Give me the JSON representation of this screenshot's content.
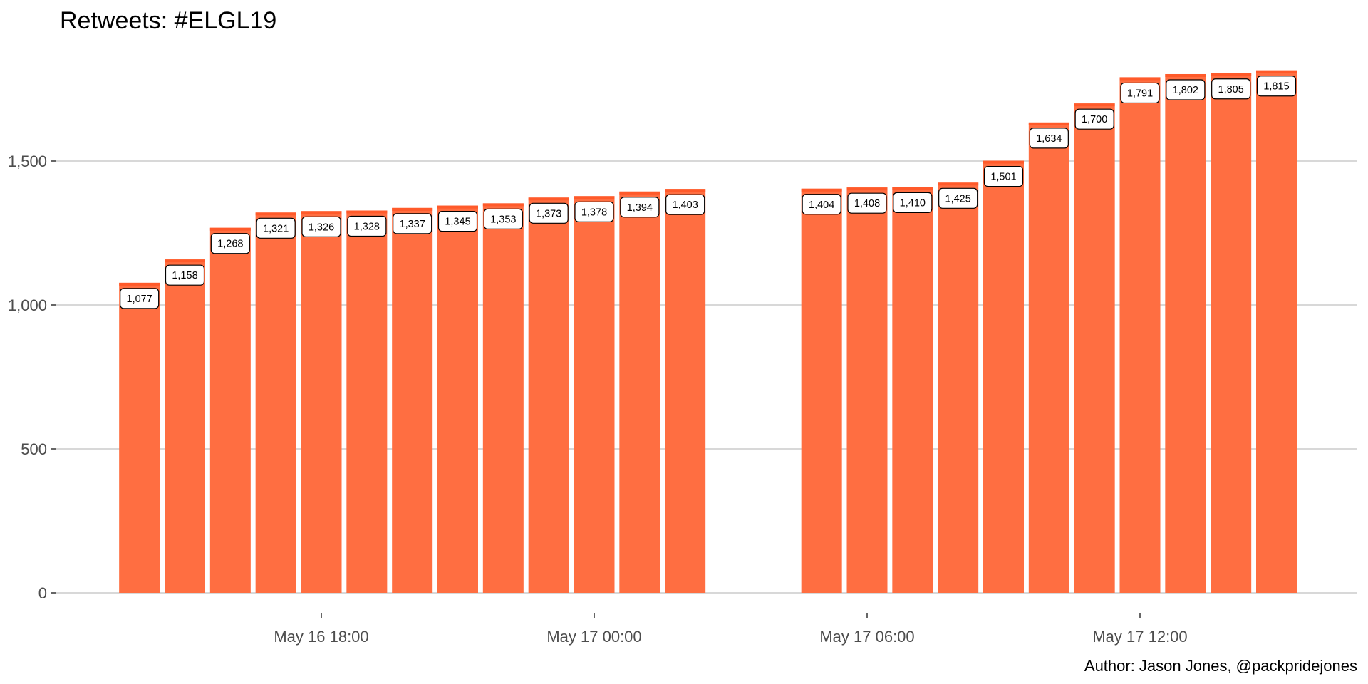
{
  "chart_data": {
    "type": "bar",
    "title": "Retweets: #ELGL19",
    "caption": "Author: Jason Jones, @packpridejones",
    "xlabel": "",
    "ylabel": "",
    "ylim": [
      0,
      1850
    ],
    "y_ticks": [
      {
        "value": 0,
        "label": "0"
      },
      {
        "value": 500,
        "label": "500"
      },
      {
        "value": 1000,
        "label": "1,000"
      },
      {
        "value": 1500,
        "label": "1,500"
      }
    ],
    "x_ticks": [
      {
        "x": "2019-05-16T18:00",
        "label": "May 16 18:00"
      },
      {
        "x": "2019-05-17T00:00",
        "label": "May 17 00:00"
      },
      {
        "x": "2019-05-17T06:00",
        "label": "May 17 06:00"
      },
      {
        "x": "2019-05-17T12:00",
        "label": "May 17 12:00"
      }
    ],
    "x": [
      "2019-05-16T14:00",
      "2019-05-16T15:00",
      "2019-05-16T16:00",
      "2019-05-16T17:00",
      "2019-05-16T18:00",
      "2019-05-16T19:00",
      "2019-05-16T20:00",
      "2019-05-16T21:00",
      "2019-05-16T22:00",
      "2019-05-16T23:00",
      "2019-05-17T00:00",
      "2019-05-17T01:00",
      "2019-05-17T02:00",
      "2019-05-17T05:00",
      "2019-05-17T06:00",
      "2019-05-17T07:00",
      "2019-05-17T08:00",
      "2019-05-17T09:00",
      "2019-05-17T10:00",
      "2019-05-17T11:00",
      "2019-05-17T12:00",
      "2019-05-17T13:00",
      "2019-05-17T14:00",
      "2019-05-17T15:00"
    ],
    "values": [
      1077,
      1158,
      1268,
      1321,
      1326,
      1328,
      1337,
      1345,
      1353,
      1373,
      1378,
      1394,
      1403,
      1404,
      1408,
      1410,
      1425,
      1501,
      1634,
      1700,
      1791,
      1802,
      1805,
      1815
    ],
    "data_labels": [
      "1,077",
      "1,158",
      "1,268",
      "1,321",
      "1,326",
      "1,328",
      "1,337",
      "1,345",
      "1,353",
      "1,373",
      "1,378",
      "1,394",
      "1,403",
      "1,404",
      "1,408",
      "1,410",
      "1,425",
      "1,501",
      "1,634",
      "1,700",
      "1,791",
      "1,802",
      "1,805",
      "1,815"
    ],
    "grid": "horizontal",
    "legend": "none",
    "colors": {
      "bar": "#ff6e41",
      "bar_top": "#ff5a2a",
      "grid": "#cccccc",
      "axis_text": "#4d4d4d"
    }
  }
}
